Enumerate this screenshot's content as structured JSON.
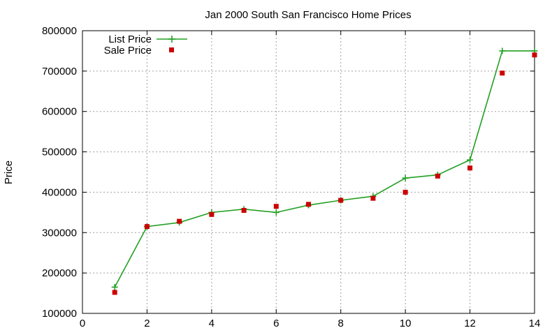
{
  "chart_data": {
    "type": "line",
    "title": "Jan 2000 South San Francisco Home Prices",
    "xlabel": "",
    "ylabel": "Price",
    "xlim": [
      0,
      14
    ],
    "ylim": [
      100000,
      800000
    ],
    "x_ticks": [
      0,
      2,
      4,
      6,
      8,
      10,
      12,
      14
    ],
    "y_ticks": [
      100000,
      200000,
      300000,
      400000,
      500000,
      600000,
      700000,
      800000
    ],
    "grid": true,
    "legend_position": "top-left",
    "series": [
      {
        "name": "List Price",
        "style": "line-with-plus-markers",
        "color": "#22a022",
        "points": [
          [
            1,
            165000
          ],
          [
            2,
            315000
          ],
          [
            3,
            325000
          ],
          [
            4,
            350000
          ],
          [
            5,
            358000
          ],
          [
            6,
            350000
          ],
          [
            7,
            368000
          ],
          [
            8,
            380000
          ],
          [
            9,
            390000
          ],
          [
            10,
            435000
          ],
          [
            11,
            443000
          ],
          [
            12,
            480000
          ],
          [
            13,
            750000
          ],
          [
            14,
            750000
          ]
        ]
      },
      {
        "name": "Sale Price",
        "style": "square-markers",
        "color": "#cc0000",
        "points": [
          [
            1,
            152000
          ],
          [
            2,
            315000
          ],
          [
            3,
            328000
          ],
          [
            4,
            345000
          ],
          [
            5,
            355000
          ],
          [
            6,
            365000
          ],
          [
            7,
            370000
          ],
          [
            8,
            380000
          ],
          [
            9,
            385000
          ],
          [
            10,
            400000
          ],
          [
            11,
            440000
          ],
          [
            12,
            460000
          ],
          [
            13,
            695000
          ],
          [
            14,
            740000
          ]
        ]
      }
    ]
  }
}
